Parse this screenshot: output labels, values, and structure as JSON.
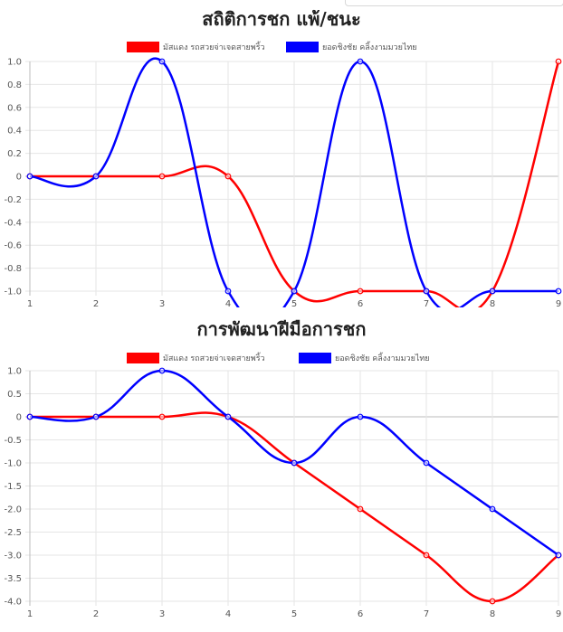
{
  "search": {
    "value": ""
  },
  "chart_data": [
    {
      "type": "line",
      "title": "สถิติการชก แพ้/ชนะ",
      "x": [
        1,
        2,
        3,
        4,
        5,
        6,
        7,
        8,
        9
      ],
      "ylim": [
        -1.0,
        1.0
      ],
      "yticks": [
        "1.0",
        "0.8",
        "0.6",
        "0.4",
        "0.2",
        "0",
        "-0.2",
        "-0.4",
        "-0.6",
        "-0.8",
        "-1.0"
      ],
      "legend": "top-center",
      "grid": true,
      "series": [
        {
          "name": "มัสแดง รถสวยจ่าเจดสายพริ้ว",
          "color": "#ff0000",
          "values": [
            0,
            0,
            0,
            0,
            -1,
            -1,
            -1,
            -1,
            1
          ]
        },
        {
          "name": "ยอดชิงชัย คลิ้งงามมวยไทย",
          "color": "#0000ff",
          "values": [
            0,
            0,
            1,
            -1,
            -1,
            1,
            -1,
            -1,
            -1
          ]
        }
      ]
    },
    {
      "type": "line",
      "title": "การพัฒนาฝีมือการชก",
      "x": [
        1,
        2,
        3,
        4,
        5,
        6,
        7,
        8,
        9
      ],
      "ylim": [
        -4.0,
        1.0
      ],
      "yticks": [
        "1.0",
        "0.5",
        "0",
        "-0.5",
        "-1.0",
        "-1.5",
        "-2.0",
        "-2.5",
        "-3.0",
        "-3.5",
        "-4.0"
      ],
      "legend": "top-center",
      "grid": true,
      "series": [
        {
          "name": "มัสแดง รถสวยจ่าเจดสายพริ้ว",
          "color": "#ff0000",
          "values": [
            0,
            0,
            0,
            0,
            -1,
            -2,
            -3,
            -4,
            -3
          ]
        },
        {
          "name": "ยอดชิงชัย คลิ้งงามมวยไทย",
          "color": "#0000ff",
          "values": [
            0,
            0,
            1,
            0,
            -1,
            0,
            -1,
            -2,
            -3
          ]
        }
      ]
    }
  ]
}
